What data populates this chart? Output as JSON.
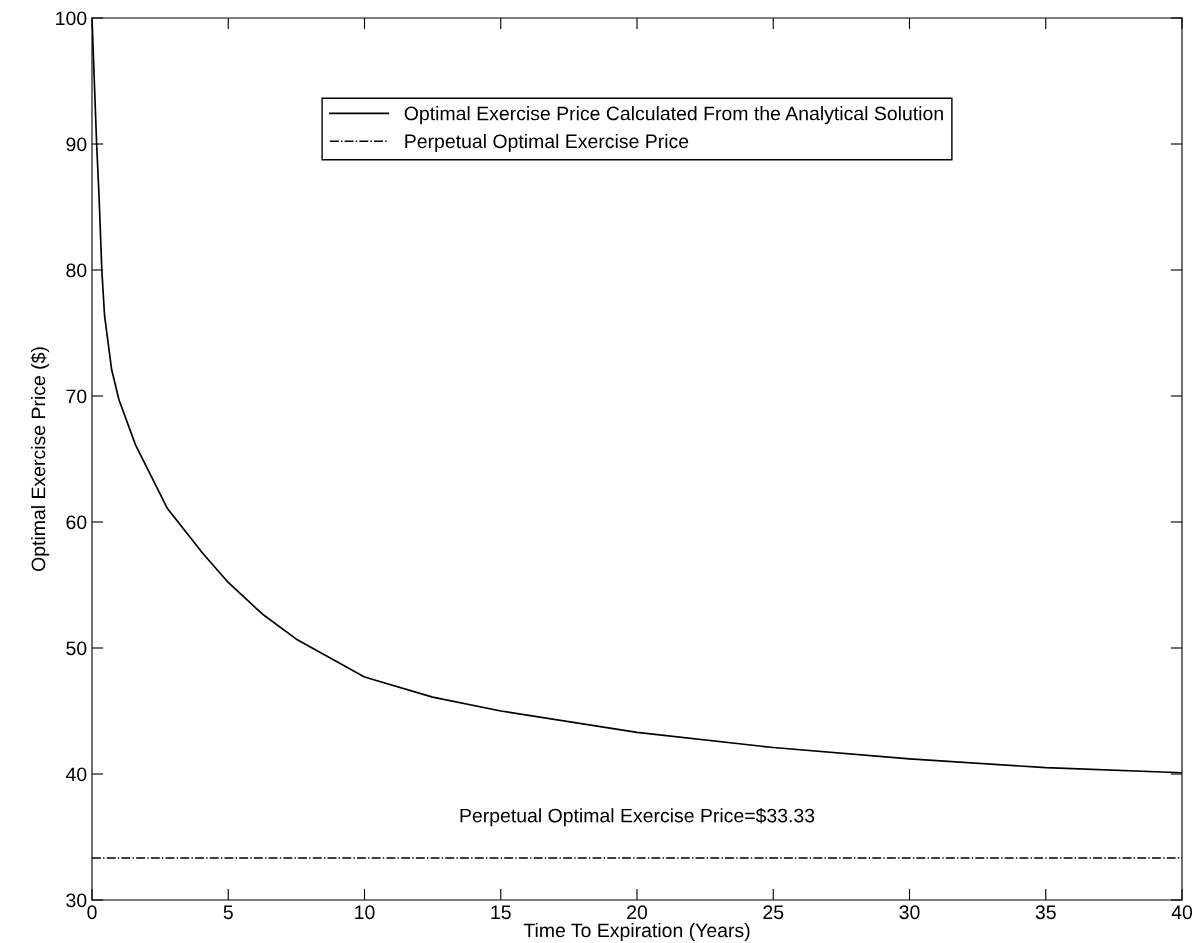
{
  "chart_data": {
    "type": "line",
    "xlabel": "Time To Expiration (Years)",
    "ylabel": "Optimal Exercise Price ($)",
    "xlim": [
      0,
      40
    ],
    "xticks": [
      0,
      5,
      10,
      15,
      20,
      25,
      30,
      35,
      40
    ],
    "ylim": [
      30,
      100
    ],
    "yticks": [
      30,
      40,
      50,
      60,
      70,
      80,
      90,
      100
    ],
    "grid": false,
    "legend": "top",
    "marker": "none",
    "line_style": "solid",
    "series": [
      {
        "name": "Optimal Exercise Price Calculated From the Analytical Solution",
        "color": "#000000",
        "x": [
          0,
          0.17,
          0.26,
          0.36,
          0.46,
          0.72,
          0.99,
          1.6,
          2.76,
          4.07,
          5,
          6.25,
          7.5,
          10,
          12.5,
          15,
          20,
          25,
          30,
          35,
          40
        ],
        "values": [
          100,
          90,
          85.8,
          80,
          76.4,
          72.1,
          69.7,
          66.1,
          61.1,
          57.5,
          55.2,
          52.7,
          50.7,
          47.7,
          46.1,
          45.0,
          43.3,
          42.1,
          41.2,
          40.5,
          40.1
        ]
      }
    ],
    "ref_lines": [
      {
        "axis": "y",
        "value": 33.33,
        "label": "Perpetual Optimal Exercise Price",
        "color": "#000000",
        "line_style": "dashdot"
      }
    ],
    "annotations": [
      "Perpetual Optimal Exercise Price=$33.33"
    ]
  }
}
